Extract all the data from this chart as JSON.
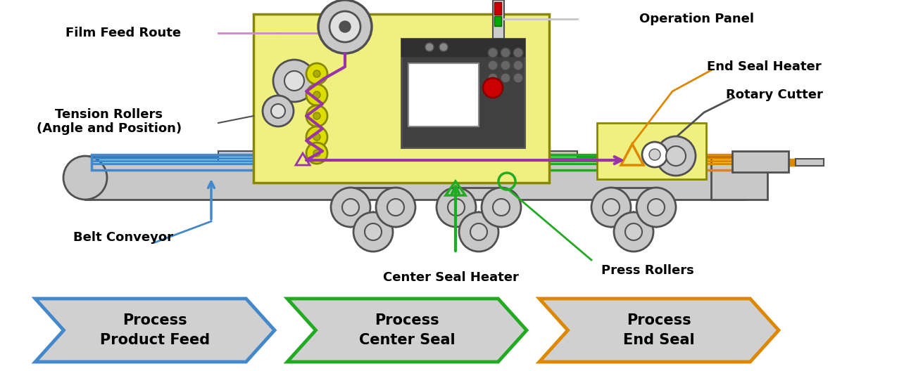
{
  "bg_color": "#ffffff",
  "machine_body_color": "#f0f080",
  "machine_body_border": "#888800",
  "gray_color": "#a8a8a8",
  "dark_gray": "#505050",
  "light_gray": "#c8c8c8",
  "blue_color": "#4488cc",
  "green_color": "#22aa22",
  "orange_color": "#dd8800",
  "purple_color": "#9933aa",
  "yellow_dot_color": "#dddd00",
  "process_bg": "#d0d0d0",
  "labels": {
    "film_feed": "Film Feed Route",
    "tension_rollers": "Tension Rollers\n(Angle and Position)",
    "belt_conveyor": "Belt Conveyor",
    "center_seal_heater": "Center Seal Heater",
    "press_rollers": "Press Rollers",
    "operation_panel": "Operation Panel",
    "end_seal_heater": "End Seal Heater",
    "rotary_cutter": "Rotary Cutter"
  },
  "process_labels": [
    "Product Feed\nProcess",
    "Center Seal\nProcess",
    "End Seal\nProcess"
  ],
  "process_colors": [
    "#4488cc",
    "#22aa22",
    "#dd8800"
  ]
}
